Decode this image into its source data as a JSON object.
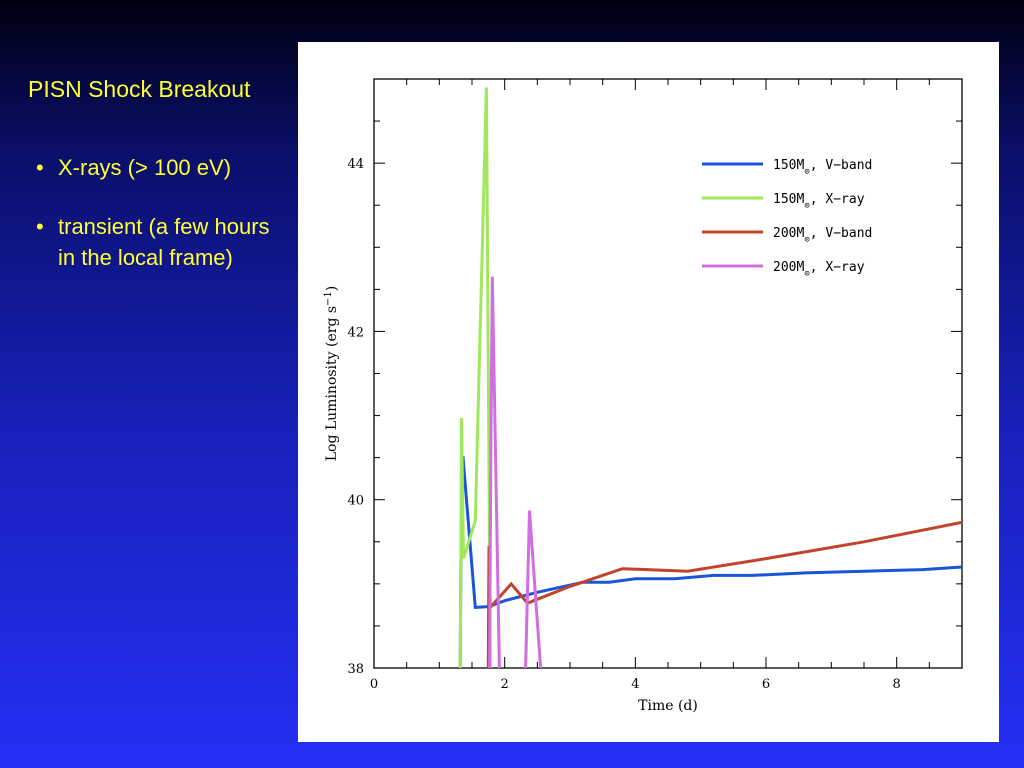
{
  "slide": {
    "title": "PISN Shock Breakout",
    "bullets": [
      "X-rays (> 100 eV)",
      "transient (a few hours in the local frame)"
    ]
  },
  "colors": {
    "background_top": "#000010",
    "background_bottom": "#2430f4",
    "text": "#ffff33",
    "series_150_v": "#1a55d6",
    "series_150_x": "#9ee85a",
    "series_200_v": "#c0432a",
    "series_200_x": "#d070e0"
  },
  "chart_data": {
    "type": "line",
    "xlabel": "Time (d)",
    "ylabel": "Log Luminosity (erg s",
    "ylabel_sup": "−1",
    "ylabel_end": ")",
    "xlim": [
      0,
      9
    ],
    "ylim": [
      38,
      45
    ],
    "x_ticks": [
      0,
      2,
      4,
      6,
      8
    ],
    "y_ticks": [
      38,
      40,
      42,
      44
    ],
    "legend_position": "top-right",
    "series": [
      {
        "name": "150M⊙, V−band",
        "legend_base": "150M",
        "legend_rest": ", V−band",
        "color": "#1a55d6",
        "points": [
          [
            1.32,
            38.0
          ],
          [
            1.33,
            39.25
          ],
          [
            1.36,
            40.52
          ],
          [
            1.55,
            38.72
          ],
          [
            1.75,
            38.73
          ],
          [
            2.0,
            38.8
          ],
          [
            2.5,
            38.9
          ],
          [
            3.2,
            39.02
          ],
          [
            3.6,
            39.02
          ],
          [
            4.0,
            39.06
          ],
          [
            4.6,
            39.06
          ],
          [
            5.2,
            39.1
          ],
          [
            5.8,
            39.1
          ],
          [
            6.6,
            39.13
          ],
          [
            7.5,
            39.15
          ],
          [
            8.4,
            39.17
          ],
          [
            9.0,
            39.2
          ]
        ]
      },
      {
        "name": "150M⊙, X-ray",
        "legend_base": "150M",
        "legend_rest": ", X−ray",
        "color": "#9ee85a",
        "points": [
          [
            1.32,
            38.0
          ],
          [
            1.33,
            39.3
          ],
          [
            1.34,
            40.97
          ],
          [
            1.37,
            39.3
          ],
          [
            1.55,
            39.75
          ],
          [
            1.72,
            44.9
          ],
          [
            1.78,
            38.0
          ]
        ]
      },
      {
        "name": "200M⊙, V-band",
        "legend_base": "200M",
        "legend_rest": ", V−band",
        "color": "#c0432a",
        "points": [
          [
            1.75,
            38.0
          ],
          [
            1.76,
            39.45
          ],
          [
            1.78,
            38.72
          ],
          [
            2.1,
            39.0
          ],
          [
            2.35,
            38.77
          ],
          [
            3.0,
            38.97
          ],
          [
            3.8,
            39.18
          ],
          [
            4.8,
            39.15
          ],
          [
            6.0,
            39.3
          ],
          [
            7.5,
            39.5
          ],
          [
            9.0,
            39.73
          ]
        ]
      },
      {
        "name": "200M⊙, X-ray",
        "legend_base": "200M",
        "legend_rest": ", X−ray",
        "color": "#d070e0",
        "points": [
          [
            1.77,
            38.0
          ],
          [
            1.79,
            40.7
          ],
          [
            1.81,
            42.65
          ],
          [
            1.92,
            38.0
          ],
          [
            null,
            null
          ],
          [
            2.32,
            38.0
          ],
          [
            2.38,
            39.87
          ],
          [
            2.55,
            38.0
          ]
        ]
      }
    ]
  }
}
